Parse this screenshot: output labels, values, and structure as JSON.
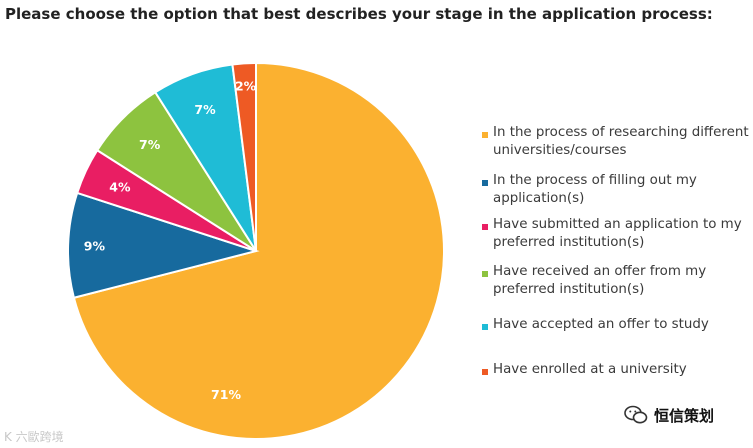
{
  "chart_data": {
    "type": "pie",
    "title": "Please choose the option that best describes your stage in the application process:",
    "slices": [
      {
        "label": "In the process of researching different universities/courses",
        "value": 71,
        "display": "71%",
        "color": "#FBB130"
      },
      {
        "label": "In the process of filling out my application(s)",
        "value": 9,
        "display": "9%",
        "color": "#176A9E"
      },
      {
        "label": "Have submitted an application to my preferred institution(s)",
        "value": 4,
        "display": "4%",
        "color": "#E91E63"
      },
      {
        "label": "Have received an offer from my preferred institution(s)",
        "value": 7,
        "display": "7%",
        "color": "#8DC33F"
      },
      {
        "label": "Have accepted an offer to study",
        "value": 7,
        "display": "7%",
        "color": "#1FBCD6"
      },
      {
        "label": "Have enrolled at a university",
        "value": 2,
        "display": "2%",
        "color": "#EE5A24"
      }
    ],
    "legend_position": "right"
  },
  "watermarks": {
    "left": "K 六歐跨境",
    "right": "恒信策划"
  }
}
